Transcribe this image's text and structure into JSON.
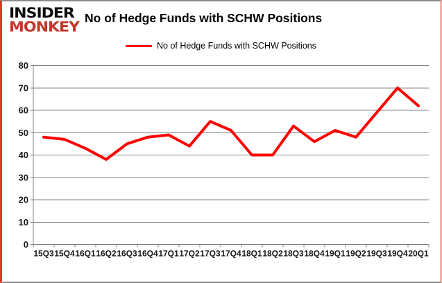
{
  "brand": {
    "line1": "INSIDER",
    "line2": "MONKEY",
    "colors": {
      "line1": "#0e0e0e",
      "line2": "#c0392b"
    }
  },
  "header": {
    "title": "No of Hedge Funds with SCHW Positions"
  },
  "legend": {
    "label": "No of Hedge Funds with SCHW Positions",
    "swatch_color": "#ff0000"
  },
  "chart_data": {
    "type": "line",
    "title": "No of Hedge Funds with SCHW Positions",
    "categories": [
      "15Q3",
      "15Q4",
      "16Q1",
      "16Q2",
      "16Q3",
      "16Q4",
      "17Q1",
      "17Q2",
      "17Q3",
      "17Q4",
      "18Q1",
      "18Q2",
      "18Q3",
      "18Q4",
      "19Q1",
      "19Q2",
      "19Q3",
      "19Q4",
      "20Q1"
    ],
    "series": [
      {
        "name": "No of Hedge Funds with SCHW Positions",
        "color": "#ff0000",
        "values": [
          48,
          47,
          43,
          38,
          45,
          48,
          49,
          44,
          55,
          51,
          40,
          40,
          53,
          46,
          51,
          48,
          59,
          70,
          62
        ]
      }
    ],
    "xlabel": "",
    "ylabel": "",
    "ylim": [
      0,
      80
    ],
    "ytick_step": 10,
    "yticks": [
      0,
      10,
      20,
      30,
      40,
      50,
      60,
      70,
      80
    ],
    "grid": true,
    "legend_position": "top-center",
    "gridline_color": "#808080",
    "text_color": "#1a1a1a"
  }
}
